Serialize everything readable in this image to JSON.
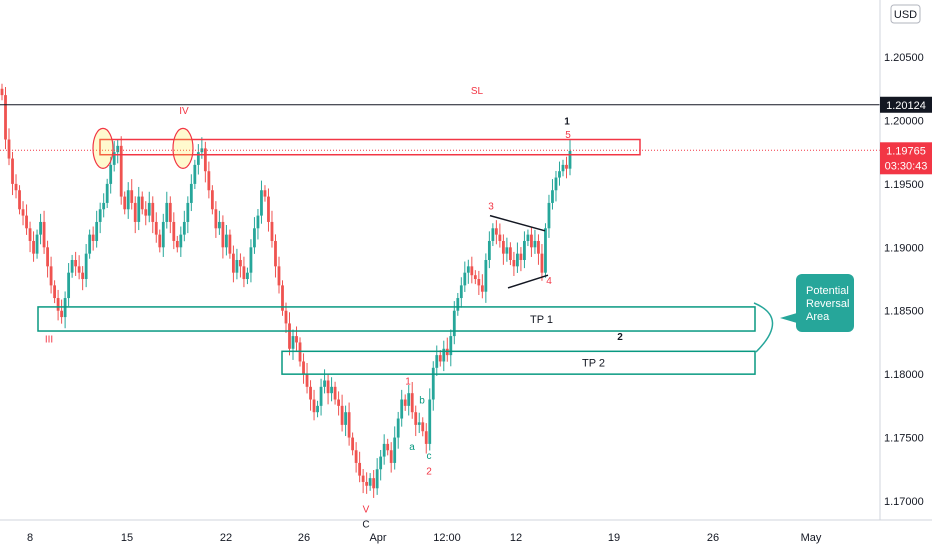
{
  "chart_data": {
    "type": "candlestick",
    "title": "",
    "currency": "USD",
    "ylim": [
      1.1685,
      1.2095
    ],
    "y_ticks": [
      1.17,
      1.175,
      1.18,
      1.185,
      1.19,
      1.195,
      1.2,
      1.205
    ],
    "y_tick_labels": [
      "1.17000",
      "1.17500",
      "1.18000",
      "1.18500",
      "1.19000",
      "1.19500",
      "1.20000",
      "1.20500"
    ],
    "x_tick_labels": [
      "8",
      "15",
      "22",
      "26",
      "Apr",
      "12:00",
      "12",
      "19",
      "26",
      "May"
    ],
    "bull_color": "#26a69a",
    "bear_color": "#ef5350",
    "last_price": 1.19765,
    "last_price_label": "1.19765",
    "countdown": "03:30:43",
    "sl_price": 1.20124,
    "sl_price_label": "1.20124",
    "sl_label": "SL",
    "closes": [
      1.202,
      1.1985,
      1.197,
      1.195,
      1.1945,
      1.193,
      1.1925,
      1.1915,
      1.1905,
      1.1895,
      1.191,
      1.192,
      1.19,
      1.1885,
      1.187,
      1.186,
      1.185,
      1.1845,
      1.186,
      1.188,
      1.189,
      1.1885,
      1.188,
      1.1875,
      1.1895,
      1.191,
      1.1905,
      1.192,
      1.193,
      1.1935,
      1.195,
      1.1965,
      1.1975,
      1.198,
      1.194,
      1.193,
      1.1945,
      1.1935,
      1.192,
      1.194,
      1.193,
      1.1925,
      1.1935,
      1.192,
      1.191,
      1.19,
      1.192,
      1.1935,
      1.192,
      1.1905,
      1.19,
      1.191,
      1.192,
      1.1935,
      1.195,
      1.1965,
      1.1975,
      1.1978,
      1.196,
      1.1945,
      1.193,
      1.1915,
      1.192,
      1.19,
      1.191,
      1.1895,
      1.188,
      1.189,
      1.1885,
      1.1875,
      1.188,
      1.19,
      1.1915,
      1.1925,
      1.1945,
      1.194,
      1.192,
      1.1905,
      1.1885,
      1.187,
      1.185,
      1.184,
      1.182,
      1.183,
      1.1825,
      1.181,
      1.18,
      1.179,
      1.178,
      1.177,
      1.1775,
      1.179,
      1.1795,
      1.1785,
      1.179,
      1.178,
      1.1775,
      1.176,
      1.177,
      1.175,
      1.174,
      1.173,
      1.172,
      1.1715,
      1.1712,
      1.1718,
      1.171,
      1.1725,
      1.1735,
      1.1745,
      1.174,
      1.173,
      1.175,
      1.1765,
      1.178,
      1.1775,
      1.1785,
      1.177,
      1.176,
      1.1762,
      1.1755,
      1.1745,
      1.178,
      1.1805,
      1.1815,
      1.181,
      1.182,
      1.1815,
      1.183,
      1.185,
      1.186,
      1.187,
      1.188,
      1.1885,
      1.1878,
      1.1875,
      1.187,
      1.1865,
      1.189,
      1.1905,
      1.1915,
      1.191,
      1.1905,
      1.1895,
      1.19,
      1.189,
      1.1885,
      1.1895,
      1.189,
      1.1905,
      1.191,
      1.19,
      1.1905,
      1.1895,
      1.188,
      1.1915,
      1.1935,
      1.1945,
      1.1955,
      1.196,
      1.1965,
      1.1962,
      1.1976
    ],
    "zones": [
      {
        "name": "resistance-zone",
        "label": "",
        "top": 1.1985,
        "bottom": 1.1973,
        "x_start": 100,
        "x_end": 640,
        "color": "#f23645"
      },
      {
        "name": "tp1-zone",
        "label": "TP 1",
        "top": 1.1853,
        "bottom": 1.1834,
        "x_start": 38,
        "x_end": 755,
        "color": "#089981"
      },
      {
        "name": "tp2-zone",
        "label": "TP 2",
        "top": 1.1818,
        "bottom": 1.18,
        "x_start": 282,
        "x_end": 755,
        "color": "#089981"
      }
    ],
    "wave_labels": [
      {
        "text": "IV",
        "x": 184,
        "price": 1.2005,
        "color": "#f23645"
      },
      {
        "text": "III",
        "x": 49,
        "price": 1.1825,
        "color": "#f23645"
      },
      {
        "text": "SL",
        "x": 477,
        "price": 1.2021,
        "color": "#f23645"
      },
      {
        "text": "1",
        "x": 567,
        "price": 1.1997,
        "color": "#131722"
      },
      {
        "text": "5",
        "x": 568,
        "price": 1.1986,
        "color": "#f23645"
      },
      {
        "text": "3",
        "x": 491,
        "price": 1.193,
        "color": "#f23645"
      },
      {
        "text": "4",
        "x": 549,
        "price": 1.1871,
        "color": "#f23645"
      },
      {
        "text": "2",
        "x": 620,
        "price": 1.1827,
        "color": "#131722"
      },
      {
        "text": "1",
        "x": 408,
        "price": 1.1792,
        "color": "#f23645"
      },
      {
        "text": "b",
        "x": 422,
        "price": 1.1777,
        "color": "#089981"
      },
      {
        "text": "a",
        "x": 412,
        "price": 1.174,
        "color": "#089981"
      },
      {
        "text": "c",
        "x": 429,
        "price": 1.1733,
        "color": "#089981"
      },
      {
        "text": "2",
        "x": 429,
        "price": 1.1721,
        "color": "#f23645"
      },
      {
        "text": "V",
        "x": 366,
        "price": 1.1691,
        "color": "#f23645"
      },
      {
        "text": "C",
        "x": 366,
        "price": 1.1679,
        "color": "#131722"
      }
    ],
    "triangle": {
      "upper": [
        [
          490,
          1.1925
        ],
        [
          545,
          1.1913
        ]
      ],
      "lower": [
        [
          508,
          1.1868
        ],
        [
          548,
          1.1878
        ]
      ]
    },
    "circles": [
      {
        "x": 103,
        "price": 1.1978
      },
      {
        "x": 183,
        "price": 1.1978
      }
    ],
    "callout": {
      "lines": [
        "Potential",
        "Reversal",
        "Area"
      ],
      "color": "#26a69a"
    }
  }
}
